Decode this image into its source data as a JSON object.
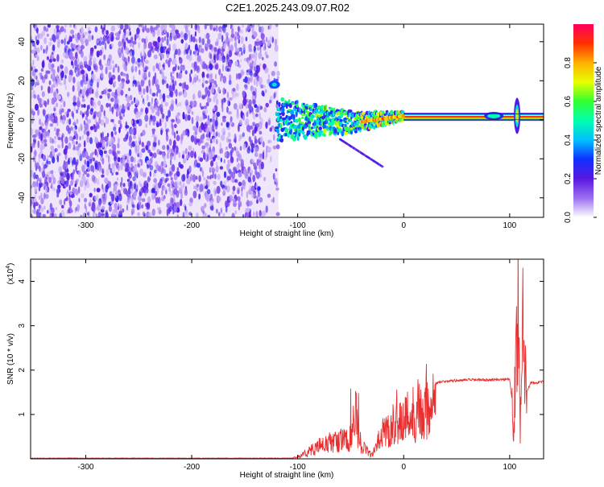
{
  "title": "C2E1.2025.243.09.07.R02",
  "chart_data": [
    {
      "type": "heatmap",
      "xlabel": "Height of straight line (km)",
      "ylabel": "Frequency (Hz)",
      "xlim": [
        -352,
        132
      ],
      "ylim": [
        -50,
        49
      ],
      "x_ticks": [
        -300,
        -200,
        -100,
        0,
        100
      ],
      "y_ticks": [
        -40,
        -20,
        0,
        20,
        40
      ],
      "colorbar": {
        "label": "Normalized spectral amplitude",
        "range": [
          0,
          1
        ],
        "ticks": [
          "0.0",
          "0.2",
          "0.4",
          "0.6",
          "0.8"
        ],
        "tick_values": [
          0,
          0.2,
          0.4,
          0.6,
          0.8
        ],
        "colors": [
          "#ffffff",
          "#9b6ff0",
          "#5a18e0",
          "#1030ff",
          "#00c0ff",
          "#00ffb0",
          "#30ff30",
          "#e8ff00",
          "#ffb000",
          "#ff3000",
          "#ff0060"
        ]
      },
      "noise_region_x": [
        -352,
        -118
      ],
      "line_track": {
        "x_range": [
          -120,
          132
        ],
        "center_freq_hz": [
          [
            -120,
            0
          ],
          [
            -40,
            -1
          ],
          [
            0,
            2
          ],
          [
            100,
            1
          ],
          [
            132,
            1
          ]
        ],
        "bright_start_x": 0,
        "spot": {
          "x": -122,
          "y": 18
        }
      }
    },
    {
      "type": "line",
      "xlabel": "Height of straight line (km)",
      "ylabel": "SNR (10 * v/v)",
      "y_scale_label_base": "(x10",
      "y_scale_label_exp": "4",
      "y_scale_label_close": ")",
      "xlim": [
        -352,
        132
      ],
      "ylim": [
        0,
        4.5
      ],
      "x_ticks": [
        -300,
        -200,
        -100,
        0,
        100
      ],
      "y_ticks": [
        1,
        2,
        3,
        4
      ],
      "line_color": "#e83030",
      "series": [
        {
          "values_approx": [
            [
              -352,
              0.0
            ],
            [
              -110,
              0.0
            ],
            [
              -100,
              0.05
            ],
            [
              -90,
              0.2
            ],
            [
              -80,
              0.35
            ],
            [
              -70,
              0.45
            ],
            [
              -60,
              0.5
            ],
            [
              -50,
              0.6
            ],
            [
              -45,
              1.2
            ],
            [
              -40,
              0.4
            ],
            [
              -30,
              0.1
            ],
            [
              -20,
              0.7
            ],
            [
              -10,
              1.0
            ],
            [
              0,
              1.1
            ],
            [
              10,
              1.3
            ],
            [
              20,
              1.6
            ],
            [
              30,
              1.7
            ],
            [
              40,
              1.75
            ],
            [
              60,
              1.78
            ],
            [
              80,
              1.78
            ],
            [
              100,
              1.8
            ],
            [
              104,
              0.9
            ],
            [
              106,
              3.0
            ],
            [
              108,
              4.4
            ],
            [
              110,
              0.5
            ],
            [
              112,
              3.8
            ],
            [
              116,
              1.5
            ],
            [
              120,
              1.72
            ],
            [
              132,
              1.73
            ]
          ]
        }
      ]
    }
  ]
}
